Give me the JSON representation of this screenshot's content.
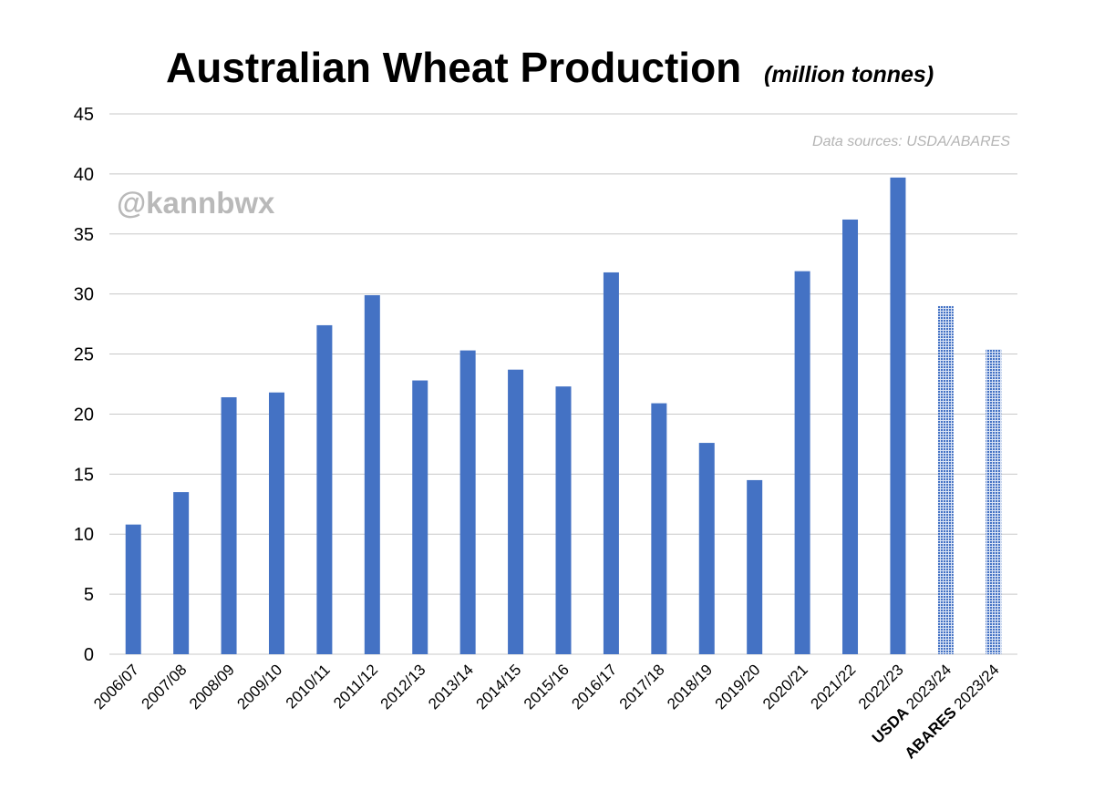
{
  "chart_data": {
    "type": "bar",
    "title": "Australian Wheat Production",
    "subtitle": "(million tonnes)",
    "source_note": "Data sources: USDA/ABARES",
    "handle": "@kannbwx",
    "ylim": [
      0,
      45
    ],
    "yticks": [
      0,
      5,
      10,
      15,
      20,
      25,
      30,
      35,
      40,
      45
    ],
    "grid": true,
    "categories": [
      {
        "label": "2006/07"
      },
      {
        "label": "2007/08"
      },
      {
        "label": "2008/09"
      },
      {
        "label": "2009/10"
      },
      {
        "label": "2010/11"
      },
      {
        "label": "2011/12"
      },
      {
        "label": "2012/13"
      },
      {
        "label": "2013/14"
      },
      {
        "label": "2014/15"
      },
      {
        "label": "2015/16"
      },
      {
        "label": "2016/17"
      },
      {
        "label": "2017/18"
      },
      {
        "label": "2018/19"
      },
      {
        "label": "2019/20"
      },
      {
        "label": "2020/21"
      },
      {
        "label": "2021/22"
      },
      {
        "label": "2022/23"
      },
      {
        "label": "2023/24",
        "prefix": "USDA"
      },
      {
        "label": "2023/24",
        "prefix": "ABARES"
      }
    ],
    "values": [
      10.8,
      13.5,
      21.4,
      21.8,
      27.4,
      29.9,
      22.8,
      25.3,
      23.7,
      22.3,
      31.8,
      20.9,
      17.6,
      14.5,
      31.9,
      36.2,
      39.7,
      29.0,
      25.4
    ],
    "forecast": [
      false,
      false,
      false,
      false,
      false,
      false,
      false,
      false,
      false,
      false,
      false,
      false,
      false,
      false,
      false,
      false,
      false,
      true,
      true
    ],
    "colors": {
      "bar": "#4472C4",
      "forecast_fill": "#4472C4",
      "forecast_bg": "#dbe4f5"
    }
  }
}
